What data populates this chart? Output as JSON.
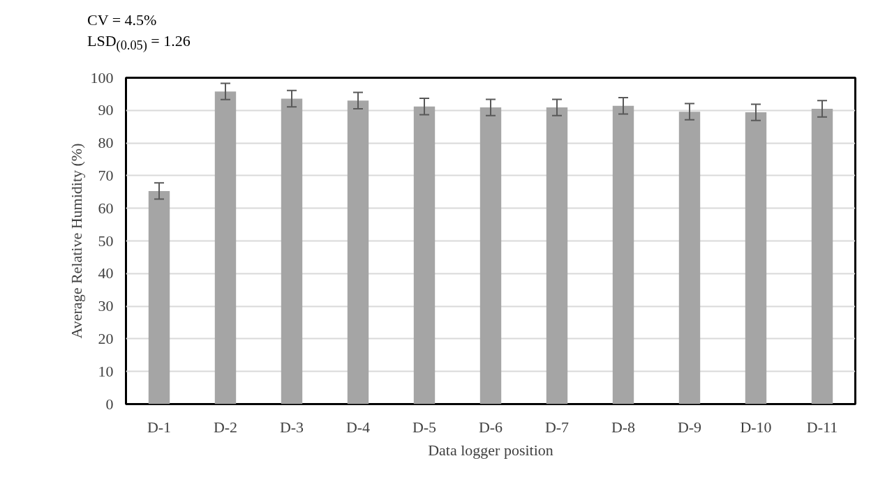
{
  "chart_data": {
    "type": "bar",
    "xlabel": "Data logger position",
    "ylabel": "Average Relative Humidity (%)",
    "categories": [
      "D-1",
      "D-2",
      "D-3",
      "D-4",
      "D-5",
      "D-6",
      "D-7",
      "D-8",
      "D-9",
      "D-10",
      "D-11"
    ],
    "values": [
      65.3,
      95.8,
      93.6,
      93.0,
      91.2,
      90.9,
      90.9,
      91.4,
      89.6,
      89.4,
      90.5
    ],
    "errors": [
      2.5,
      2.5,
      2.5,
      2.5,
      2.5,
      2.5,
      2.5,
      2.5,
      2.5,
      2.5,
      2.5
    ],
    "color": "#a5a5a5",
    "ylim": [
      0,
      100
    ],
    "yticks": [
      0,
      10,
      20,
      30,
      40,
      50,
      60,
      70,
      80,
      90,
      100
    ],
    "grid": "y",
    "annotations": [
      "CV = 4.5%",
      "LSD$_{(0.05)}$ = 1.26"
    ]
  }
}
